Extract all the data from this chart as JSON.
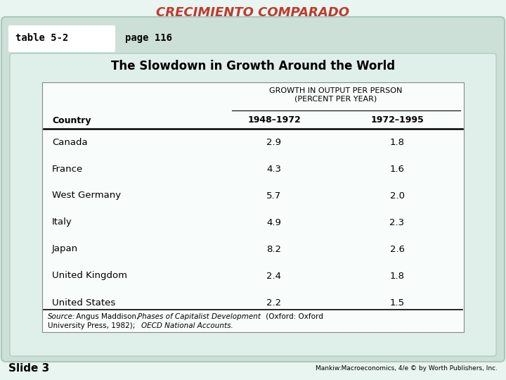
{
  "title": "CRECIMIENTO COMPARADO",
  "title_color": "#c0392b",
  "table_label": "table 5-2",
  "page_label": "page 116",
  "table_title": "The Slowdown in Growth Around the World",
  "col_header_main": "GROWTH IN OUTPUT PER PERSON\n(PERCENT PER YEAR)",
  "col_header1": "1948–1972",
  "col_header2": "1972–1995",
  "col_country": "Country",
  "countries": [
    "Canada",
    "France",
    "West Germany",
    "Italy",
    "Japan",
    "United Kingdom",
    "United States"
  ],
  "values_1948_1972": [
    2.9,
    4.3,
    5.7,
    4.9,
    8.2,
    2.4,
    2.2
  ],
  "values_1972_1995": [
    1.8,
    1.6,
    2.0,
    2.3,
    2.6,
    1.8,
    1.5
  ],
  "slide_label": "Slide 3",
  "footer_right": "Mankiw:Macroeconomics, 4/e © by Worth Publishers, Inc.",
  "bg_outer": "#cce0d8",
  "bg_inner": "#dff0ea",
  "bg_slide": "#e8f5f0"
}
